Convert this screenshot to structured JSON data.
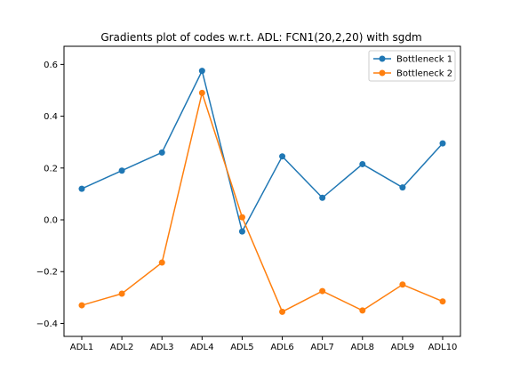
{
  "chart_data": {
    "type": "line",
    "title": "Gradients plot of codes w.r.t. ADL: FCN1(20,2,20) with sgdm",
    "xlabel": "",
    "ylabel": "",
    "categories": [
      "ADL1",
      "ADL2",
      "ADL3",
      "ADL4",
      "ADL5",
      "ADL6",
      "ADL7",
      "ADL8",
      "ADL9",
      "ADL10"
    ],
    "ylim": [
      -0.45,
      0.67
    ],
    "yticks": [
      "0.6",
      "0.4",
      "0.2",
      "0.0",
      "−0.2",
      "−0.4"
    ],
    "ytick_values": [
      0.6,
      0.4,
      0.2,
      0.0,
      -0.2,
      -0.4
    ],
    "grid": false,
    "legend_position": "top-right",
    "series": [
      {
        "name": "Bottleneck 1",
        "color": "#1f77b4",
        "marker": "circle",
        "values": [
          0.12,
          0.19,
          0.26,
          0.575,
          -0.045,
          0.245,
          0.085,
          0.215,
          0.125,
          0.295
        ]
      },
      {
        "name": "Bottleneck 2",
        "color": "#ff7f0e",
        "marker": "circle",
        "values": [
          -0.33,
          -0.285,
          -0.165,
          0.49,
          0.01,
          -0.355,
          -0.275,
          -0.35,
          -0.25,
          -0.315
        ]
      }
    ]
  }
}
